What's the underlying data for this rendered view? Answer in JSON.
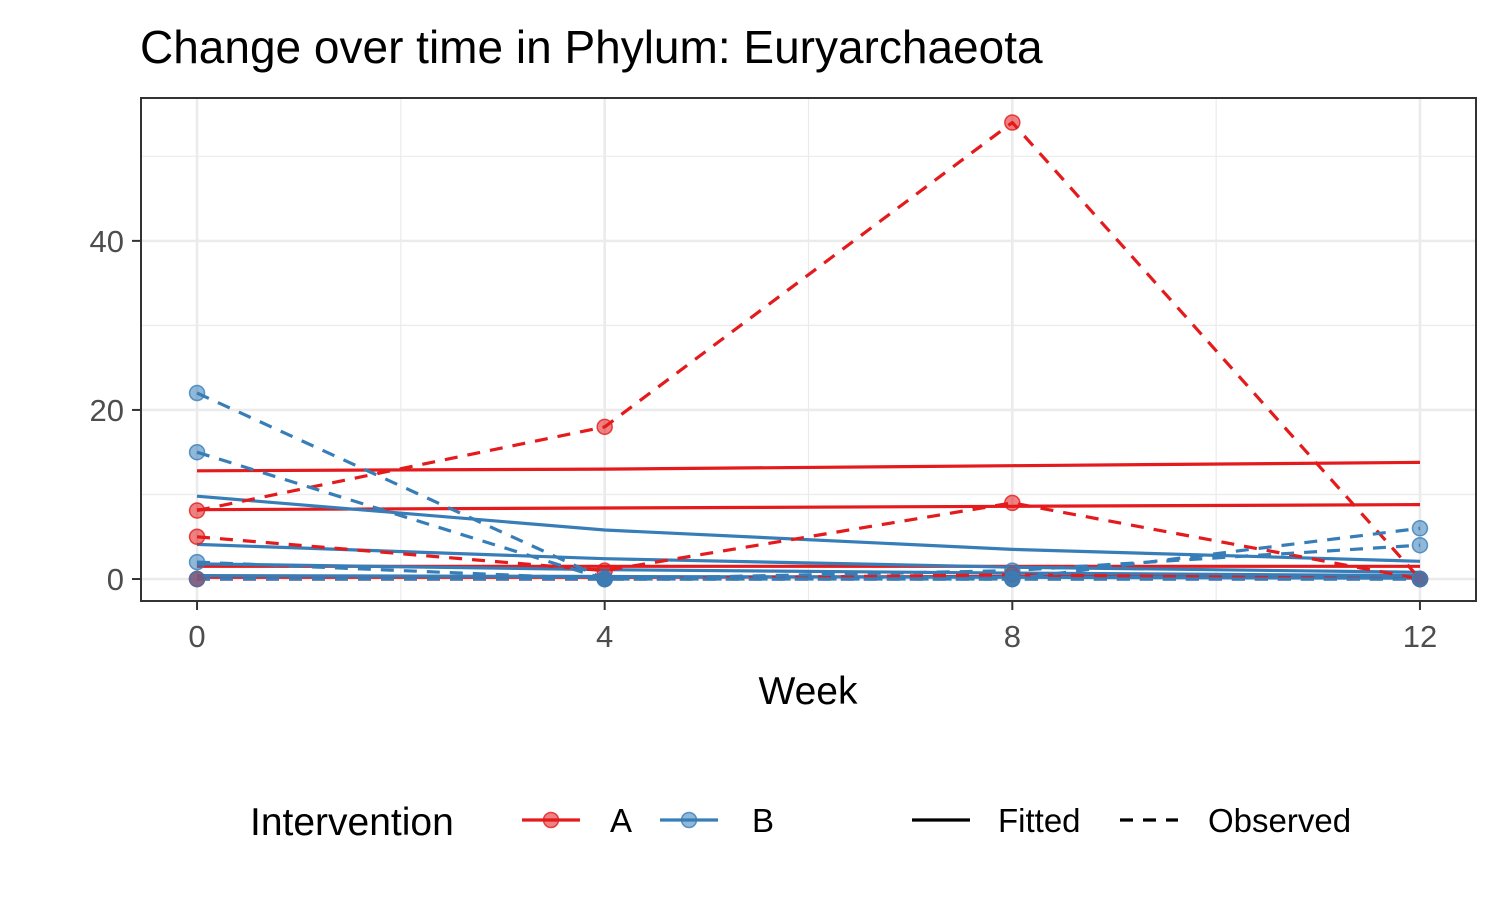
{
  "chart_data": {
    "type": "line",
    "title": "Change over time in Phylum: Euryarchaeota",
    "xlabel": "Week",
    "ylabel": "",
    "x_ticks": [
      0,
      4,
      8,
      12
    ],
    "y_ticks": [
      0,
      20,
      40
    ],
    "xlim": [
      -0.55,
      12.55
    ],
    "ylim": [
      -2.6,
      56.9
    ],
    "grid": true,
    "legend": {
      "position": "bottom",
      "color_title": "Intervention",
      "color_items": [
        {
          "label": "A",
          "color": "#e41a1c"
        },
        {
          "label": "B",
          "color": "#377eb8"
        }
      ],
      "linetype_items": [
        {
          "label": "Fitted",
          "style": "solid"
        },
        {
          "label": "Observed",
          "style": "dashed"
        }
      ]
    },
    "observed_series": [
      {
        "group": "A",
        "x": [
          0,
          4,
          8,
          12
        ],
        "y": [
          8.1,
          18.0,
          54.0,
          0.0
        ]
      },
      {
        "group": "A",
        "x": [
          0,
          4,
          8,
          12
        ],
        "y": [
          5.0,
          1.0,
          9.0,
          0.0
        ]
      },
      {
        "group": "A",
        "x": [
          0,
          4,
          8,
          12
        ],
        "y": [
          0.0,
          0.0,
          0.5,
          0.0
        ]
      },
      {
        "group": "A",
        "x": [
          0,
          4,
          8,
          12
        ],
        "y": [
          0.0,
          0.0,
          0.0,
          0.0
        ]
      },
      {
        "group": "B",
        "x": [
          0,
          4,
          8,
          12
        ],
        "y": [
          22.0,
          0.0,
          0.0,
          6.0
        ]
      },
      {
        "group": "B",
        "x": [
          0,
          4,
          8,
          12
        ],
        "y": [
          15.0,
          0.0,
          1.0,
          4.0
        ]
      },
      {
        "group": "B",
        "x": [
          0,
          4,
          8,
          12
        ],
        "y": [
          2.0,
          0.0,
          0.0,
          0.0
        ]
      },
      {
        "group": "B",
        "x": [
          0,
          4,
          8,
          12
        ],
        "y": [
          0.0,
          0.0,
          0.0,
          0.0
        ]
      }
    ],
    "fitted_series": [
      {
        "group": "A",
        "x": [
          0,
          4,
          8,
          12
        ],
        "y": [
          12.8,
          13.0,
          13.4,
          13.8
        ]
      },
      {
        "group": "A",
        "x": [
          0,
          4,
          8,
          12
        ],
        "y": [
          8.2,
          8.4,
          8.6,
          8.8
        ]
      },
      {
        "group": "A",
        "x": [
          0,
          4,
          8,
          12
        ],
        "y": [
          1.5,
          1.5,
          1.5,
          1.5
        ]
      },
      {
        "group": "A",
        "x": [
          0,
          4,
          8,
          12
        ],
        "y": [
          0.2,
          0.2,
          0.3,
          0.3
        ]
      },
      {
        "group": "B",
        "x": [
          0,
          4,
          8,
          12
        ],
        "y": [
          9.8,
          5.8,
          3.5,
          2.1
        ]
      },
      {
        "group": "B",
        "x": [
          0,
          4,
          8,
          12
        ],
        "y": [
          4.1,
          2.4,
          1.4,
          0.8
        ]
      },
      {
        "group": "B",
        "x": [
          0,
          4,
          8,
          12
        ],
        "y": [
          1.8,
          1.1,
          0.7,
          0.4
        ]
      },
      {
        "group": "B",
        "x": [
          0,
          4,
          8,
          12
        ],
        "y": [
          0.4,
          0.3,
          0.2,
          0.1
        ]
      }
    ]
  }
}
